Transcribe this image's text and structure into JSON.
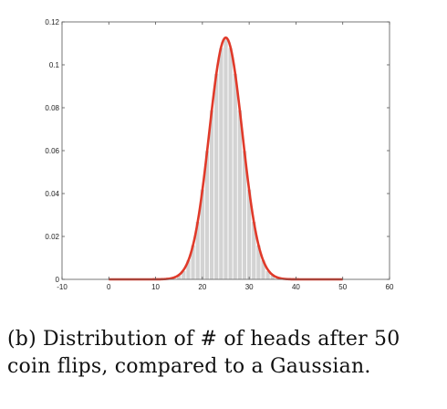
{
  "caption": {
    "line1": "(b) Distribution of # of heads after 50",
    "line2": "coin flips, compared to a Gaussian."
  },
  "chart_data": {
    "type": "bar",
    "title": "",
    "xlabel": "",
    "ylabel": "",
    "xlim": [
      -10,
      60
    ],
    "ylim": [
      0,
      0.12
    ],
    "xticks": [
      "-10",
      "0",
      "10",
      "20",
      "30",
      "40",
      "50",
      "60"
    ],
    "yticks": [
      "0",
      "0.02",
      "0.04",
      "0.06",
      "0.08",
      "0.1",
      "0.12"
    ],
    "grid": false,
    "legend": "none",
    "bar_color": "#d3d3d3",
    "curve_color": "#e03a2a",
    "histogram": {
      "name": "",
      "x": [
        15,
        16,
        17,
        18,
        19,
        20,
        21,
        22,
        23,
        24,
        25,
        26,
        27,
        28,
        29,
        30,
        31,
        32,
        33,
        34,
        35
      ],
      "values": [
        0.002,
        0.004,
        0.009,
        0.016,
        0.027,
        0.042,
        0.06,
        0.079,
        0.096,
        0.108,
        0.112,
        0.108,
        0.096,
        0.079,
        0.06,
        0.042,
        0.027,
        0.016,
        0.009,
        0.004,
        0.002
      ]
    },
    "gaussian": {
      "name": "",
      "mean": 25,
      "std": 3.54,
      "x_range": [
        0,
        50
      ]
    }
  }
}
